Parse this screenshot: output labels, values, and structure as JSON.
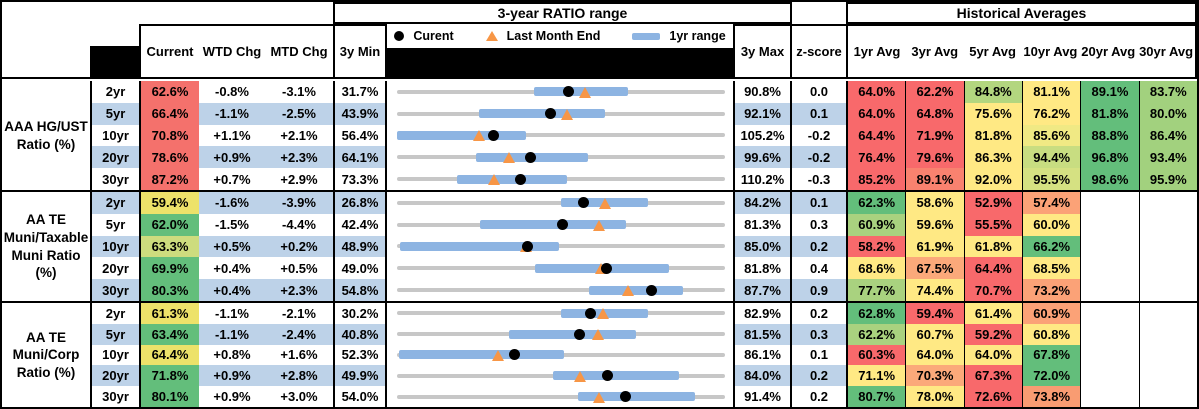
{
  "header": {
    "range_title": "3-year RATIO range",
    "hist_title": "Historical Averages",
    "col_current": "Current",
    "col_wtd": "WTD Chg",
    "col_mtd": "MTD Chg",
    "col_min": "3y Min",
    "col_max": "3y Max",
    "col_z": "z-score",
    "avg_headers": [
      "1yr Avg",
      "3yr Avg",
      "5yr Avg",
      "10yr Avg",
      "20yr Avg",
      "30yr Avg"
    ],
    "legend": {
      "current": "Curent",
      "last_month": "Last Month End",
      "range": "1yr range"
    }
  },
  "colors": {
    "band": "#BDD2E8",
    "bar": "#8DB4E2",
    "track": "#C7C7C7",
    "triangle": "#F79646",
    "dot": "#000000",
    "heat_red": "#F8696B",
    "heat_yellow": "#FFE984",
    "heat_green": "#63BE7B"
  },
  "chart_data": {
    "type": "table",
    "note_scale": "each row range chart spans 3y Min to 3y Max",
    "groups": [
      {
        "label": "AAA HG/UST Ratio (%)",
        "rows": [
          {
            "tenor": "2yr",
            "current": "62.6%",
            "cur_bg": "#F4716C",
            "wtd": "-0.8%",
            "mtd": "-3.1%",
            "min": "31.7%",
            "max": "90.8%",
            "z": "0.0",
            "range": {
              "lo": 31.7,
              "hi": 90.8,
              "bar": [
                56.4,
                73.4
              ],
              "dot": 62.6,
              "tri": 65.7
            },
            "avgs": [
              {
                "v": "64.0%",
                "bg": "#F8696B"
              },
              {
                "v": "62.2%",
                "bg": "#F8696B"
              },
              {
                "v": "84.8%",
                "bg": "#B3D67F"
              },
              {
                "v": "81.1%",
                "bg": "#FFE984"
              },
              {
                "v": "89.1%",
                "bg": "#63BE7B"
              },
              {
                "v": "83.7%",
                "bg": "#A2D17E"
              }
            ]
          },
          {
            "tenor": "5yr",
            "current": "66.4%",
            "cur_bg": "#F4716C",
            "wtd": "-1.1%",
            "mtd": "-2.5%",
            "min": "43.9%",
            "max": "92.1%",
            "z": "0.1",
            "range": {
              "lo": 43.9,
              "hi": 92.1,
              "bar": [
                56.0,
                74.4
              ],
              "dot": 66.4,
              "tri": 68.9
            },
            "avgs": [
              {
                "v": "64.0%",
                "bg": "#F8696B"
              },
              {
                "v": "64.8%",
                "bg": "#F8696B"
              },
              {
                "v": "75.6%",
                "bg": "#FFE984"
              },
              {
                "v": "76.2%",
                "bg": "#FFE984"
              },
              {
                "v": "81.8%",
                "bg": "#63BE7B"
              },
              {
                "v": "80.0%",
                "bg": "#A2D17E"
              }
            ]
          },
          {
            "tenor": "10yr",
            "current": "70.8%",
            "cur_bg": "#F4716C",
            "wtd": "+1.1%",
            "mtd": "+2.1%",
            "min": "56.4%",
            "max": "105.2%",
            "z": "-0.2",
            "range": {
              "lo": 56.4,
              "hi": 105.2,
              "bar": [
                56.4,
                75.6
              ],
              "dot": 70.8,
              "tri": 68.7
            },
            "avgs": [
              {
                "v": "64.4%",
                "bg": "#F8696B"
              },
              {
                "v": "71.9%",
                "bg": "#F8696B"
              },
              {
                "v": "81.8%",
                "bg": "#FFE984"
              },
              {
                "v": "85.6%",
                "bg": "#F0E984"
              },
              {
                "v": "88.8%",
                "bg": "#63BE7B"
              },
              {
                "v": "86.4%",
                "bg": "#A2D17E"
              }
            ]
          },
          {
            "tenor": "20yr",
            "current": "78.6%",
            "cur_bg": "#F4716C",
            "wtd": "+0.9%",
            "mtd": "+2.3%",
            "min": "64.1%",
            "max": "99.6%",
            "z": "-0.2",
            "range": {
              "lo": 64.1,
              "hi": 99.6,
              "bar": [
                72.7,
                84.8
              ],
              "dot": 78.6,
              "tri": 76.3
            },
            "avgs": [
              {
                "v": "76.4%",
                "bg": "#F8696B"
              },
              {
                "v": "79.6%",
                "bg": "#F8696B"
              },
              {
                "v": "86.3%",
                "bg": "#FFE984"
              },
              {
                "v": "94.4%",
                "bg": "#C8DD81"
              },
              {
                "v": "96.8%",
                "bg": "#63BE7B"
              },
              {
                "v": "93.4%",
                "bg": "#A2D17E"
              }
            ]
          },
          {
            "tenor": "30yr",
            "current": "87.2%",
            "cur_bg": "#F4716C",
            "wtd": "+0.7%",
            "mtd": "+2.9%",
            "min": "73.3%",
            "max": "110.2%",
            "z": "-0.3",
            "range": {
              "lo": 73.3,
              "hi": 110.2,
              "bar": [
                80.0,
                92.4
              ],
              "dot": 87.2,
              "tri": 84.3
            },
            "avgs": [
              {
                "v": "85.2%",
                "bg": "#F8696B"
              },
              {
                "v": "89.1%",
                "bg": "#F9826F"
              },
              {
                "v": "92.0%",
                "bg": "#FFE984"
              },
              {
                "v": "95.5%",
                "bg": "#D5E182"
              },
              {
                "v": "98.6%",
                "bg": "#63BE7B"
              },
              {
                "v": "95.9%",
                "bg": "#A2D17E"
              }
            ]
          }
        ]
      },
      {
        "label": "AA TE Muni/Taxable Muni Ratio (%)",
        "rows": [
          {
            "tenor": "2yr",
            "current": "59.4%",
            "cur_bg": "#EDE26A",
            "wtd": "-1.6%",
            "mtd": "-3.9%",
            "min": "26.8%",
            "max": "84.2%",
            "z": "0.1",
            "range": {
              "lo": 26.8,
              "hi": 84.2,
              "bar": [
                55.5,
                70.7
              ],
              "dot": 59.4,
              "tri": 63.3
            },
            "avgs": [
              {
                "v": "62.3%",
                "bg": "#63BE7B"
              },
              {
                "v": "58.6%",
                "bg": "#FFE984"
              },
              {
                "v": "52.9%",
                "bg": "#F8696B"
              },
              {
                "v": "57.4%",
                "bg": "#FBA277"
              },
              {
                "v": "",
                "bg": ""
              },
              {
                "v": "",
                "bg": ""
              }
            ]
          },
          {
            "tenor": "5yr",
            "current": "62.0%",
            "cur_bg": "#63BE7B",
            "wtd": "-1.5%",
            "mtd": "-4.4%",
            "min": "42.4%",
            "max": "81.3%",
            "z": "0.3",
            "range": {
              "lo": 42.4,
              "hi": 81.3,
              "bar": [
                52.2,
                69.6
              ],
              "dot": 62.0,
              "tri": 66.4
            },
            "avgs": [
              {
                "v": "60.9%",
                "bg": "#A9D27F"
              },
              {
                "v": "59.6%",
                "bg": "#FFE984"
              },
              {
                "v": "55.5%",
                "bg": "#F8696B"
              },
              {
                "v": "60.0%",
                "bg": "#FFE984"
              },
              {
                "v": "",
                "bg": ""
              },
              {
                "v": "",
                "bg": ""
              }
            ]
          },
          {
            "tenor": "10yr",
            "current": "63.3%",
            "cur_bg": "#CDDC7E",
            "wtd": "+0.5%",
            "mtd": "+0.2%",
            "min": "48.9%",
            "max": "85.0%",
            "z": "0.2",
            "range": {
              "lo": 48.9,
              "hi": 85.0,
              "bar": [
                49.2,
                66.7
              ],
              "dot": 63.3,
              "tri": 63.1
            },
            "avgs": [
              {
                "v": "58.2%",
                "bg": "#F8696B"
              },
              {
                "v": "61.9%",
                "bg": "#FFE984"
              },
              {
                "v": "61.8%",
                "bg": "#FFE984"
              },
              {
                "v": "66.2%",
                "bg": "#63BE7B"
              },
              {
                "v": "",
                "bg": ""
              },
              {
                "v": "",
                "bg": ""
              }
            ]
          },
          {
            "tenor": "20yr",
            "current": "69.9%",
            "cur_bg": "#63BE7B",
            "wtd": "+0.4%",
            "mtd": "+0.5%",
            "min": "49.0%",
            "max": "81.8%",
            "z": "0.4",
            "range": {
              "lo": 49.0,
              "hi": 81.8,
              "bar": [
                62.8,
                76.2
              ],
              "dot": 69.9,
              "tri": 69.4
            },
            "avgs": [
              {
                "v": "68.6%",
                "bg": "#FFE984"
              },
              {
                "v": "67.5%",
                "bg": "#FBA97A"
              },
              {
                "v": "64.4%",
                "bg": "#F8696B"
              },
              {
                "v": "68.5%",
                "bg": "#FFE984"
              },
              {
                "v": "",
                "bg": ""
              },
              {
                "v": "",
                "bg": ""
              }
            ]
          },
          {
            "tenor": "30yr",
            "current": "80.3%",
            "cur_bg": "#63BE7B",
            "wtd": "+0.4%",
            "mtd": "+2.3%",
            "min": "54.8%",
            "max": "87.7%",
            "z": "0.9",
            "range": {
              "lo": 54.8,
              "hi": 87.7,
              "bar": [
                74.1,
                83.5
              ],
              "dot": 80.3,
              "tri": 78.0
            },
            "avgs": [
              {
                "v": "77.7%",
                "bg": "#A9D27F"
              },
              {
                "v": "74.4%",
                "bg": "#FFE984"
              },
              {
                "v": "70.7%",
                "bg": "#F8696B"
              },
              {
                "v": "73.2%",
                "bg": "#FBA277"
              },
              {
                "v": "",
                "bg": ""
              },
              {
                "v": "",
                "bg": ""
              }
            ]
          }
        ]
      },
      {
        "label": "AA TE Muni/Corp Ratio (%)",
        "rows": [
          {
            "tenor": "2yr",
            "current": "61.3%",
            "cur_bg": "#EDE26A",
            "wtd": "-1.1%",
            "mtd": "-2.1%",
            "min": "30.2%",
            "max": "82.9%",
            "z": "0.2",
            "range": {
              "lo": 30.2,
              "hi": 82.9,
              "bar": [
                56.6,
                70.6
              ],
              "dot": 61.3,
              "tri": 63.4
            },
            "avgs": [
              {
                "v": "62.8%",
                "bg": "#63BE7B"
              },
              {
                "v": "59.4%",
                "bg": "#F8696B"
              },
              {
                "v": "61.4%",
                "bg": "#FFE984"
              },
              {
                "v": "60.9%",
                "bg": "#FBA277"
              },
              {
                "v": "",
                "bg": ""
              },
              {
                "v": "",
                "bg": ""
              }
            ]
          },
          {
            "tenor": "5yr",
            "current": "63.4%",
            "cur_bg": "#63BE7B",
            "wtd": "-1.1%",
            "mtd": "-2.4%",
            "min": "40.8%",
            "max": "81.5%",
            "z": "0.3",
            "range": {
              "lo": 40.8,
              "hi": 81.5,
              "bar": [
                54.7,
                70.5
              ],
              "dot": 63.4,
              "tri": 65.8
            },
            "avgs": [
              {
                "v": "62.2%",
                "bg": "#A9D27F"
              },
              {
                "v": "60.7%",
                "bg": "#FFE984"
              },
              {
                "v": "59.2%",
                "bg": "#F8696B"
              },
              {
                "v": "60.8%",
                "bg": "#FFE984"
              },
              {
                "v": "",
                "bg": ""
              },
              {
                "v": "",
                "bg": ""
              }
            ]
          },
          {
            "tenor": "10yr",
            "current": "64.4%",
            "cur_bg": "#EDE26A",
            "wtd": "+0.8%",
            "mtd": "+1.6%",
            "min": "52.3%",
            "max": "86.1%",
            "z": "0.1",
            "range": {
              "lo": 52.3,
              "hi": 86.1,
              "bar": [
                52.5,
                69.5
              ],
              "dot": 64.4,
              "tri": 62.8
            },
            "avgs": [
              {
                "v": "60.3%",
                "bg": "#F8696B"
              },
              {
                "v": "64.0%",
                "bg": "#FFE984"
              },
              {
                "v": "64.0%",
                "bg": "#FFE984"
              },
              {
                "v": "67.8%",
                "bg": "#63BE7B"
              },
              {
                "v": "",
                "bg": ""
              },
              {
                "v": "",
                "bg": ""
              }
            ]
          },
          {
            "tenor": "20yr",
            "current": "71.8%",
            "cur_bg": "#63BE7B",
            "wtd": "+0.9%",
            "mtd": "+2.8%",
            "min": "49.9%",
            "max": "84.0%",
            "z": "0.2",
            "range": {
              "lo": 49.9,
              "hi": 84.0,
              "bar": [
                66.1,
                79.2
              ],
              "dot": 71.8,
              "tri": 69.0
            },
            "avgs": [
              {
                "v": "71.1%",
                "bg": "#FFE984"
              },
              {
                "v": "70.3%",
                "bg": "#FBA97A"
              },
              {
                "v": "67.3%",
                "bg": "#F8696B"
              },
              {
                "v": "72.0%",
                "bg": "#63BE7B"
              },
              {
                "v": "",
                "bg": ""
              },
              {
                "v": "",
                "bg": ""
              }
            ]
          },
          {
            "tenor": "30yr",
            "current": "80.1%",
            "cur_bg": "#63BE7B",
            "wtd": "+0.9%",
            "mtd": "+3.0%",
            "min": "54.0%",
            "max": "91.4%",
            "z": "0.2",
            "range": {
              "lo": 54.0,
              "hi": 91.4,
              "bar": [
                74.6,
                88.0
              ],
              "dot": 80.1,
              "tri": 77.1
            },
            "avgs": [
              {
                "v": "80.7%",
                "bg": "#63BE7B"
              },
              {
                "v": "78.0%",
                "bg": "#FFE984"
              },
              {
                "v": "72.6%",
                "bg": "#F8696B"
              },
              {
                "v": "73.8%",
                "bg": "#F99C72"
              },
              {
                "v": "",
                "bg": ""
              },
              {
                "v": "",
                "bg": ""
              }
            ]
          }
        ]
      }
    ]
  }
}
